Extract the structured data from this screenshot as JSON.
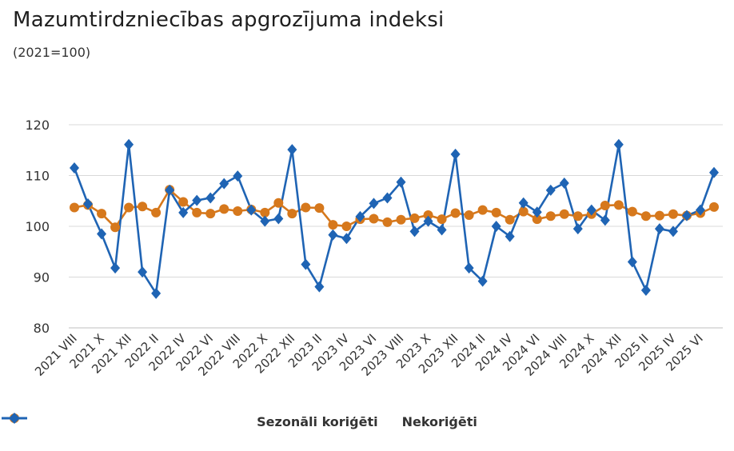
{
  "title": "Mazumtirdzniecības apgrozījuma indeksi",
  "subtitle": "(2021=100)",
  "colors": {
    "orange": "#d6781c",
    "blue": "#1f64b4",
    "grid": "#d9d9d9"
  },
  "chart_data": {
    "type": "line",
    "ylim": [
      80,
      120
    ],
    "yticks": [
      80,
      90,
      100,
      110,
      120
    ],
    "grid": true,
    "legend_position": "bottom",
    "x": [
      "2021 VIII",
      "2021 IX",
      "2021 X",
      "2021 XI",
      "2021 XII",
      "2022 I",
      "2022 II",
      "2022 III",
      "2022 IV",
      "2022 V",
      "2022 VI",
      "2022 VII",
      "2022 VIII",
      "2022 IX",
      "2022 X",
      "2022 XI",
      "2022 XII",
      "2023 I",
      "2023 II",
      "2023 III",
      "2023 IV",
      "2023 V",
      "2023 VI",
      "2023 VII",
      "2023 VIII",
      "2023 IX",
      "2023 X",
      "2023 XI",
      "2023 XII",
      "2024 I",
      "2024 II",
      "2024 III",
      "2024 IV",
      "2024 V",
      "2024 VI",
      "2024 VII",
      "2024 VIII",
      "2024 IX",
      "2024 X",
      "2024 XI",
      "2024 XII",
      "2025 I",
      "2025 II",
      "2025 III",
      "2025 IV",
      "2025 V",
      "2025 VI",
      "2025 VII"
    ],
    "xtick_labels": [
      "2021 VIII",
      "2021 X",
      "2021 XII",
      "2022 II",
      "2022 IV",
      "2022 VI",
      "2022 VIII",
      "2022 X",
      "2022 XII",
      "2023 II",
      "2023 IV",
      "2023 VI",
      "2023 VIII",
      "2023 X",
      "2023 XII",
      "2024 II",
      "2024 IV",
      "2024 VI",
      "2024 VIII",
      "2024 X",
      "2024 XII",
      "2025 II",
      "2025 IV",
      "2025 VI"
    ],
    "series": [
      {
        "name": "Sezonāli koriģēti",
        "color": "#d6781c",
        "marker": "circle",
        "values": [
          103.7,
          104.2,
          102.5,
          99.8,
          103.7,
          103.9,
          102.7,
          107.2,
          104.8,
          102.7,
          102.5,
          103.4,
          103.0,
          103.3,
          102.7,
          104.6,
          102.5,
          103.7,
          103.6,
          100.3,
          100.0,
          101.4,
          101.5,
          100.8,
          101.3,
          101.6,
          102.2,
          101.4,
          102.6,
          102.2,
          103.2,
          102.7,
          101.3,
          102.9,
          101.4,
          102.0,
          102.4,
          102.0,
          102.4,
          104.1,
          104.2,
          102.9,
          102.0,
          102.1,
          102.4,
          102.1,
          102.6,
          103.8
        ]
      },
      {
        "name": "Nekoriģēti",
        "color": "#1f64b4",
        "marker": "diamond",
        "values": [
          111.5,
          104.4,
          98.5,
          91.8,
          116.1,
          91.0,
          86.8,
          107.1,
          102.7,
          105.1,
          105.6,
          108.4,
          109.9,
          103.2,
          101.0,
          101.5,
          115.1,
          92.5,
          88.1,
          98.3,
          97.6,
          101.9,
          104.5,
          105.6,
          108.7,
          99.0,
          101.0,
          99.3,
          114.2,
          91.8,
          89.2,
          100.0,
          98.0,
          104.6,
          102.8,
          107.1,
          108.5,
          99.5,
          103.2,
          101.2,
          116.1,
          93.0,
          87.4,
          99.5,
          99.0,
          102.1,
          103.2,
          110.6
        ]
      }
    ]
  }
}
